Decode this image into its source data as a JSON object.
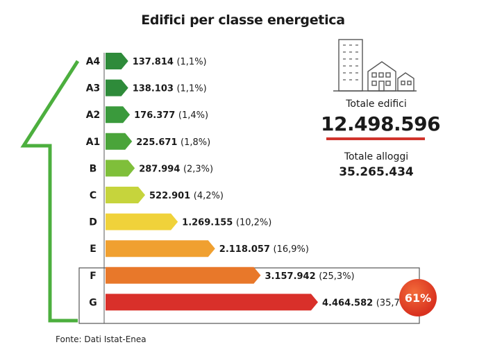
{
  "chart_data": {
    "type": "bar",
    "orientation": "horizontal",
    "title": "Edifici per classe energetica",
    "categories": [
      "A4",
      "A3",
      "A2",
      "A1",
      "B",
      "C",
      "D",
      "E",
      "F",
      "G"
    ],
    "values": [
      137814,
      138103,
      176377,
      225671,
      287994,
      522901,
      1269155,
      2118057,
      3157942,
      4464582
    ],
    "value_labels": [
      "137.814",
      "138.103",
      "176.377",
      "225.671",
      "287.994",
      "522.901",
      "1.269.155",
      "2.118.057",
      "3.157.942",
      "4.464.582"
    ],
    "percent_labels": [
      "(1,1%)",
      "(1,1%)",
      "(1,4%)",
      "(1,8%)",
      "(2,3%)",
      "(4,2%)",
      "(10,2%)",
      "(16,9%)",
      "(25,3%)",
      "(35,7%)"
    ],
    "percentages": [
      1.1,
      1.1,
      1.4,
      1.8,
      2.3,
      4.2,
      10.2,
      16.9,
      25.3,
      35.7
    ],
    "colors": [
      "#2e8b3a",
      "#2e8b3a",
      "#3a9a3c",
      "#4aa43a",
      "#7fbf3a",
      "#c6d43c",
      "#f0d23a",
      "#f0a030",
      "#e8782a",
      "#d9302a"
    ],
    "highlighted": [
      "F",
      "G"
    ],
    "highlight_label": "61%",
    "grid": false,
    "legend": "none"
  },
  "stats": {
    "total_buildings_label": "Totale edifici",
    "total_buildings_value": "12.498.596",
    "total_dwellings_label": "Totale alloggi",
    "total_dwellings_value": "35.265.434"
  },
  "source": "Fonte: Dati Istat-Enea",
  "icons": [
    "buildings-icon"
  ],
  "colors": {
    "outline_green": "#4caf3e",
    "accent_red": "#d0342c"
  }
}
